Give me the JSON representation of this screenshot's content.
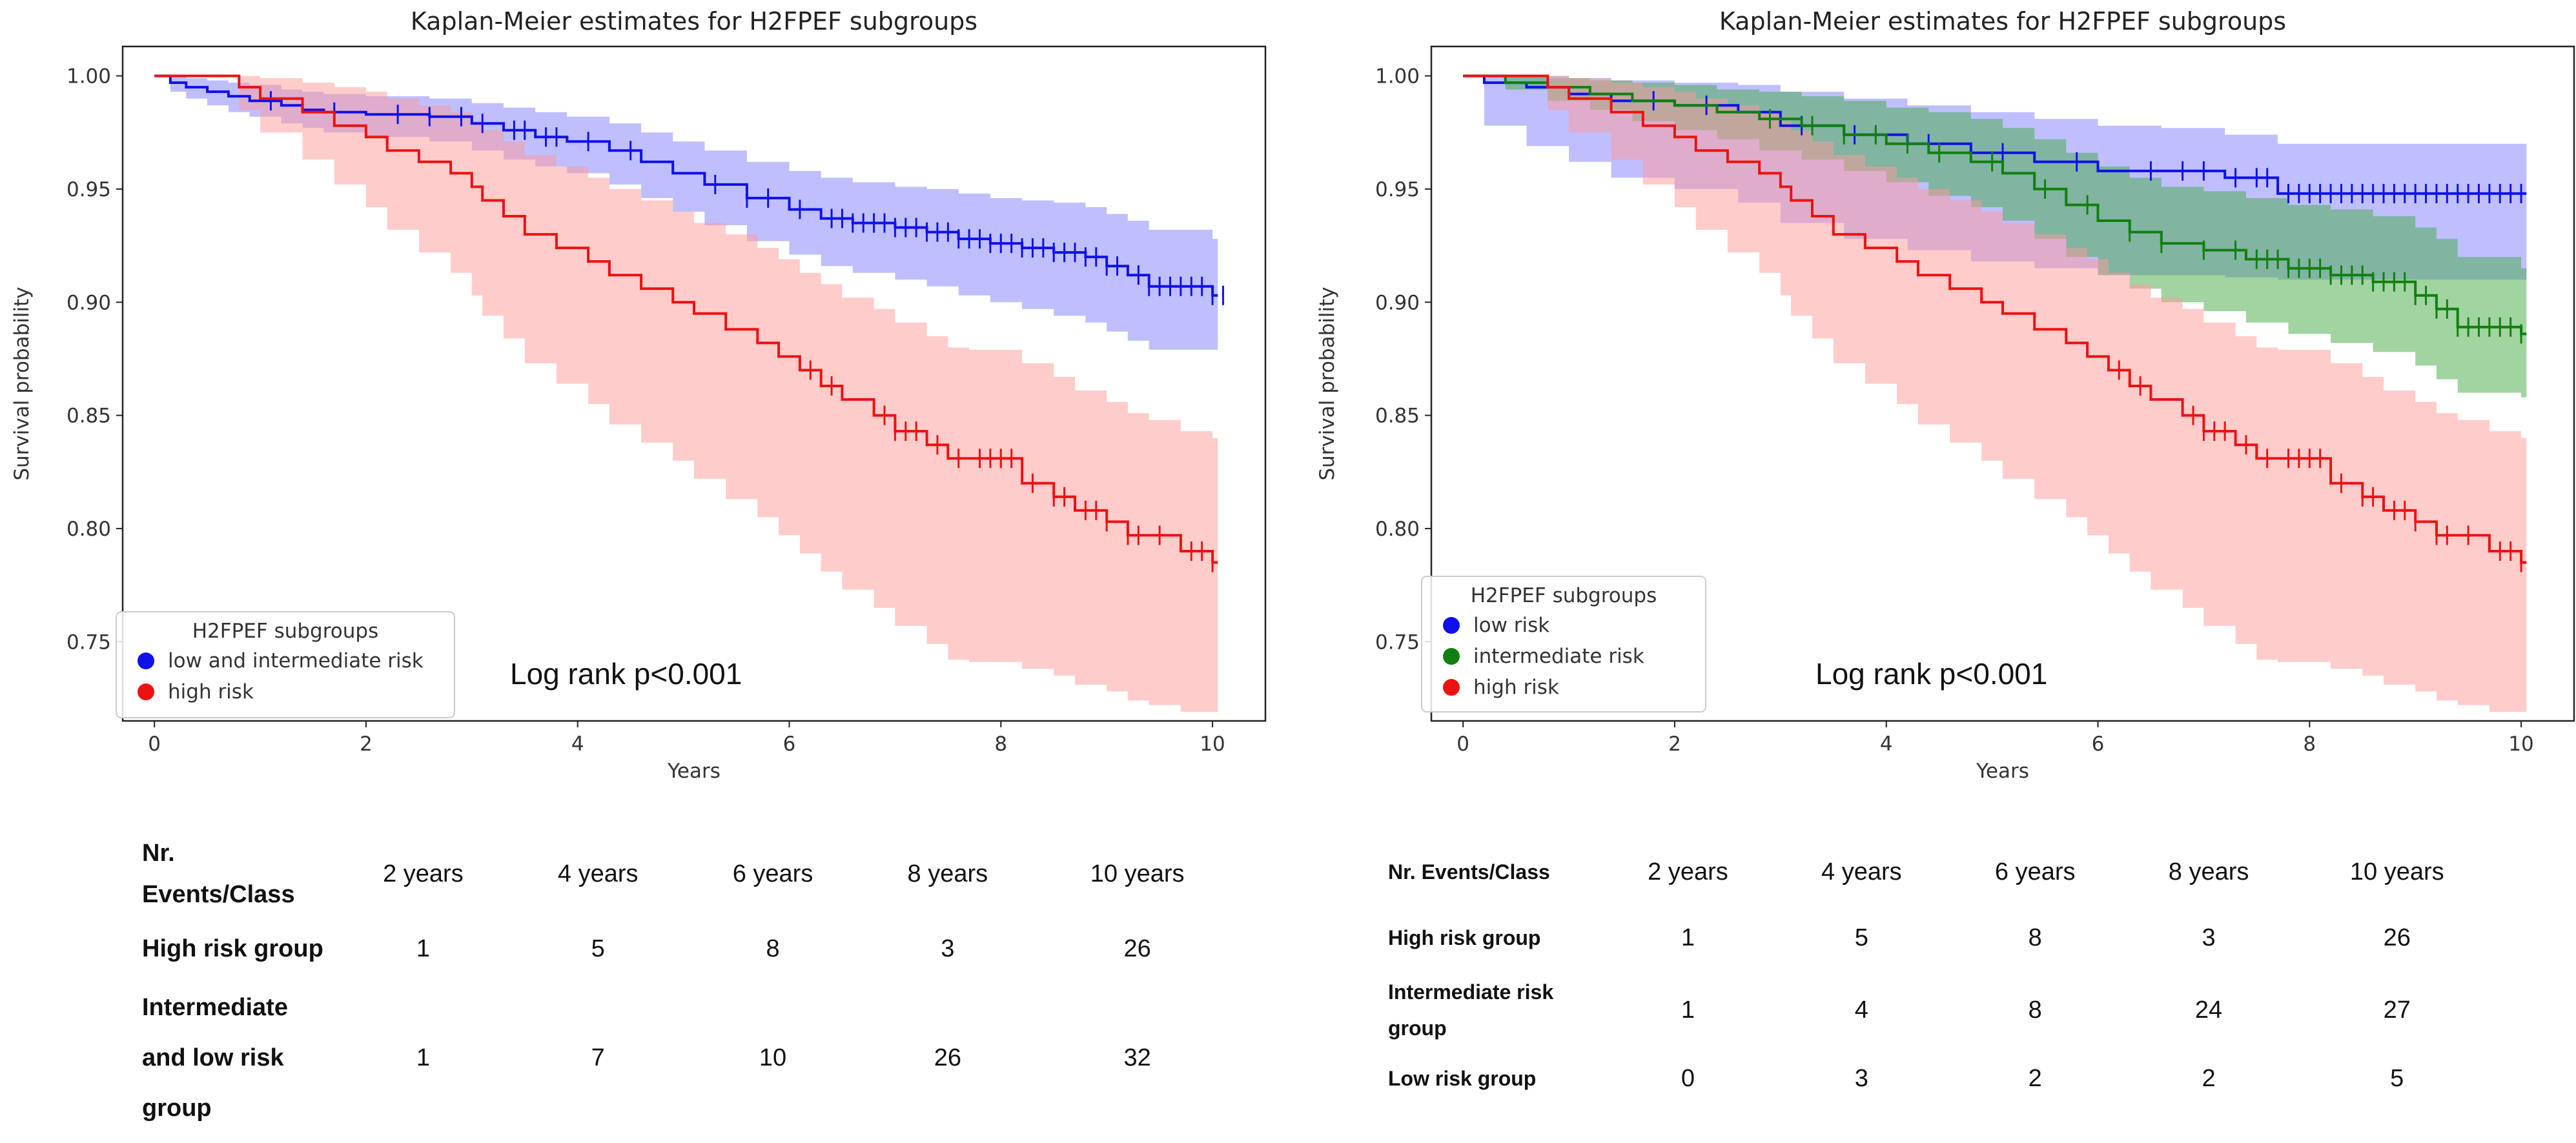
{
  "chart_data": [
    {
      "type": "line",
      "subtype": "kaplan-meier",
      "title": "Kaplan-Meier estimates for H2FPEF subgroups",
      "xlabel": "Years",
      "ylabel": "Survival probability",
      "xlim": [
        -0.3,
        10.5
      ],
      "ylim": [
        0.715,
        1.013
      ],
      "xticks": [
        0,
        2,
        4,
        6,
        8,
        10
      ],
      "yticks": [
        0.75,
        0.8,
        0.85,
        0.9,
        0.95,
        1.0
      ],
      "ytick_labels": [
        "0.75",
        "0.80",
        "0.85",
        "0.90",
        "0.95",
        "1.00"
      ],
      "legend": {
        "title": "H2FPEF subgroups",
        "position": "lower-left",
        "entries": [
          {
            "label": "low and intermediate risk",
            "color": "#1010ee"
          },
          {
            "label": "high risk",
            "color": "#ee1111"
          }
        ]
      },
      "annotation": "Log rank p<0.001",
      "series": [
        {
          "name": "low and intermediate risk",
          "color": "#1010ee",
          "band_color": "#8080ff",
          "x": [
            0,
            0.15,
            0.3,
            0.5,
            0.7,
            0.9,
            1.2,
            1.4,
            1.6,
            2.0,
            2.6,
            3.0,
            3.3,
            3.6,
            3.9,
            4.3,
            4.6,
            4.9,
            5.2,
            5.6,
            6.0,
            6.3,
            6.6,
            7.0,
            7.3,
            7.6,
            7.9,
            8.2,
            8.5,
            8.8,
            9.0,
            9.2,
            9.4,
            10.0
          ],
          "y": [
            1.0,
            0.997,
            0.995,
            0.993,
            0.991,
            0.989,
            0.987,
            0.985,
            0.984,
            0.983,
            0.982,
            0.979,
            0.976,
            0.973,
            0.971,
            0.967,
            0.962,
            0.957,
            0.952,
            0.946,
            0.941,
            0.937,
            0.935,
            0.933,
            0.931,
            0.928,
            0.926,
            0.924,
            0.922,
            0.92,
            0.916,
            0.912,
            0.907,
            0.903
          ],
          "lower": [
            1.0,
            0.993,
            0.99,
            0.987,
            0.984,
            0.982,
            0.979,
            0.977,
            0.975,
            0.973,
            0.971,
            0.967,
            0.963,
            0.96,
            0.957,
            0.952,
            0.946,
            0.94,
            0.934,
            0.927,
            0.921,
            0.916,
            0.913,
            0.91,
            0.907,
            0.903,
            0.9,
            0.897,
            0.894,
            0.891,
            0.887,
            0.883,
            0.879,
            0.879
          ],
          "upper": [
            1.0,
            1.0,
            0.999,
            0.998,
            0.997,
            0.996,
            0.994,
            0.993,
            0.992,
            0.991,
            0.99,
            0.988,
            0.986,
            0.984,
            0.982,
            0.979,
            0.975,
            0.971,
            0.967,
            0.962,
            0.958,
            0.955,
            0.953,
            0.951,
            0.95,
            0.948,
            0.946,
            0.945,
            0.944,
            0.942,
            0.939,
            0.936,
            0.932,
            0.928
          ],
          "censored": [
            1.1,
            1.7,
            2.3,
            2.6,
            2.9,
            3.1,
            3.4,
            3.5,
            3.7,
            3.8,
            4.1,
            4.5,
            5.3,
            5.6,
            5.8,
            6.1,
            6.4,
            6.5,
            6.6,
            6.7,
            6.8,
            6.9,
            7.0,
            7.1,
            7.2,
            7.3,
            7.4,
            7.5,
            7.6,
            7.7,
            7.8,
            7.9,
            8.0,
            8.1,
            8.2,
            8.3,
            8.4,
            8.5,
            8.6,
            8.7,
            8.8,
            8.9,
            9.0,
            9.1,
            9.3,
            9.4,
            9.5,
            9.6,
            9.7,
            9.8,
            9.9,
            10.0,
            10.1
          ]
        },
        {
          "name": "high risk",
          "color": "#ee1111",
          "band_color": "#ff9a9a",
          "x": [
            0,
            0.8,
            1.0,
            1.4,
            1.7,
            2.0,
            2.2,
            2.5,
            2.8,
            3.0,
            3.1,
            3.3,
            3.5,
            3.8,
            4.1,
            4.3,
            4.6,
            4.9,
            5.1,
            5.4,
            5.7,
            5.9,
            6.1,
            6.3,
            6.5,
            6.8,
            7.0,
            7.3,
            7.5,
            7.7,
            8.2,
            8.5,
            8.7,
            9.0,
            9.2,
            9.4,
            9.7,
            10.0
          ],
          "y": [
            1.0,
            0.995,
            0.99,
            0.984,
            0.978,
            0.973,
            0.967,
            0.962,
            0.957,
            0.951,
            0.945,
            0.938,
            0.93,
            0.924,
            0.918,
            0.912,
            0.906,
            0.9,
            0.895,
            0.888,
            0.882,
            0.876,
            0.87,
            0.863,
            0.857,
            0.85,
            0.843,
            0.837,
            0.831,
            0.831,
            0.82,
            0.814,
            0.808,
            0.803,
            0.797,
            0.797,
            0.79,
            0.785
          ],
          "lower": [
            1.0,
            0.985,
            0.975,
            0.963,
            0.952,
            0.942,
            0.932,
            0.922,
            0.913,
            0.903,
            0.894,
            0.884,
            0.873,
            0.864,
            0.855,
            0.846,
            0.838,
            0.83,
            0.822,
            0.813,
            0.805,
            0.797,
            0.789,
            0.781,
            0.773,
            0.765,
            0.757,
            0.749,
            0.742,
            0.741,
            0.738,
            0.735,
            0.731,
            0.728,
            0.724,
            0.722,
            0.719,
            0.719
          ],
          "upper": [
            1.0,
            1.0,
            0.999,
            0.997,
            0.995,
            0.993,
            0.99,
            0.987,
            0.984,
            0.98,
            0.976,
            0.971,
            0.965,
            0.96,
            0.955,
            0.95,
            0.945,
            0.94,
            0.935,
            0.93,
            0.924,
            0.919,
            0.913,
            0.908,
            0.902,
            0.897,
            0.891,
            0.885,
            0.88,
            0.879,
            0.873,
            0.867,
            0.861,
            0.856,
            0.851,
            0.848,
            0.843,
            0.84
          ],
          "censored": [
            6.2,
            6.4,
            6.9,
            7.0,
            7.1,
            7.2,
            7.4,
            7.6,
            7.8,
            7.9,
            8.0,
            8.1,
            8.3,
            8.5,
            8.6,
            8.8,
            8.9,
            9.0,
            9.2,
            9.3,
            9.5,
            9.8,
            9.9,
            10.0
          ]
        }
      ]
    },
    {
      "type": "line",
      "subtype": "kaplan-meier",
      "title": "Kaplan-Meier estimates for H2FPEF subgroups",
      "xlabel": "Years",
      "ylabel": "Survival probability",
      "xlim": [
        -0.3,
        10.5
      ],
      "ylim": [
        0.715,
        1.013
      ],
      "xticks": [
        0,
        2,
        4,
        6,
        8,
        10
      ],
      "yticks": [
        0.75,
        0.8,
        0.85,
        0.9,
        0.95,
        1.0
      ],
      "ytick_labels": [
        "0.75",
        "0.80",
        "0.85",
        "0.90",
        "0.95",
        "1.00"
      ],
      "legend": {
        "title": "H2FPEF subgroups",
        "position": "lower-left",
        "entries": [
          {
            "label": "low risk",
            "color": "#1010ee"
          },
          {
            "label": "intermediate risk",
            "color": "#108010"
          },
          {
            "label": "high risk",
            "color": "#ee1111"
          }
        ]
      },
      "annotation": "Log rank p<0.001",
      "series": [
        {
          "name": "low risk",
          "color": "#1010ee",
          "band_color": "#8080ff",
          "x": [
            0,
            0.2,
            0.6,
            1.0,
            1.4,
            2.0,
            2.6,
            3.0,
            3.6,
            4.2,
            4.8,
            5.4,
            6.0,
            6.6,
            7.2,
            7.7,
            10.0
          ],
          "y": [
            1.0,
            0.997,
            0.995,
            0.992,
            0.989,
            0.987,
            0.984,
            0.978,
            0.974,
            0.97,
            0.966,
            0.962,
            0.958,
            0.958,
            0.955,
            0.948,
            0.948
          ],
          "lower": [
            1.0,
            0.978,
            0.969,
            0.962,
            0.955,
            0.95,
            0.944,
            0.935,
            0.928,
            0.923,
            0.918,
            0.915,
            0.912,
            0.912,
            0.911,
            0.91,
            0.91
          ],
          "upper": [
            1.0,
            1.0,
            1.0,
            0.999,
            0.998,
            0.997,
            0.996,
            0.993,
            0.99,
            0.987,
            0.984,
            0.981,
            0.978,
            0.977,
            0.974,
            0.97,
            0.97
          ],
          "censored": [
            1.8,
            2.3,
            3.2,
            3.7,
            4.4,
            5.1,
            5.8,
            6.5,
            6.8,
            7.0,
            7.3,
            7.5,
            7.6,
            7.8,
            7.9,
            8.0,
            8.1,
            8.2,
            8.3,
            8.4,
            8.5,
            8.6,
            8.7,
            8.8,
            8.9,
            9.0,
            9.1,
            9.2,
            9.3,
            9.4,
            9.5,
            9.6,
            9.7,
            9.8,
            9.9,
            10.0
          ]
        },
        {
          "name": "intermediate risk",
          "color": "#108010",
          "band_color": "#44aa44",
          "x": [
            0,
            0.4,
            0.8,
            1.2,
            1.6,
            2.0,
            2.4,
            2.8,
            3.2,
            3.6,
            4.0,
            4.4,
            4.8,
            5.1,
            5.4,
            5.7,
            6.0,
            6.3,
            6.6,
            7.0,
            7.4,
            7.8,
            8.2,
            8.6,
            9.0,
            9.2,
            9.4,
            10.0
          ],
          "y": [
            1.0,
            0.997,
            0.995,
            0.992,
            0.989,
            0.987,
            0.984,
            0.981,
            0.978,
            0.974,
            0.97,
            0.966,
            0.962,
            0.957,
            0.95,
            0.943,
            0.936,
            0.931,
            0.926,
            0.923,
            0.919,
            0.915,
            0.912,
            0.909,
            0.903,
            0.897,
            0.889,
            0.886
          ],
          "lower": [
            1.0,
            0.994,
            0.989,
            0.985,
            0.98,
            0.976,
            0.972,
            0.967,
            0.963,
            0.958,
            0.953,
            0.947,
            0.942,
            0.936,
            0.928,
            0.92,
            0.912,
            0.906,
            0.9,
            0.896,
            0.891,
            0.886,
            0.882,
            0.878,
            0.872,
            0.866,
            0.86,
            0.858
          ],
          "upper": [
            1.0,
            1.0,
            0.999,
            0.998,
            0.997,
            0.996,
            0.994,
            0.993,
            0.991,
            0.989,
            0.986,
            0.984,
            0.981,
            0.977,
            0.972,
            0.966,
            0.96,
            0.955,
            0.951,
            0.949,
            0.946,
            0.943,
            0.941,
            0.938,
            0.933,
            0.928,
            0.92,
            0.915
          ],
          "censored": [
            2.9,
            3.3,
            3.6,
            3.9,
            4.2,
            4.5,
            5.0,
            5.5,
            5.9,
            6.3,
            6.6,
            7.0,
            7.3,
            7.5,
            7.6,
            7.7,
            7.8,
            7.9,
            8.0,
            8.1,
            8.2,
            8.3,
            8.4,
            8.5,
            8.6,
            8.7,
            8.8,
            8.9,
            9.0,
            9.1,
            9.2,
            9.3,
            9.4,
            9.5,
            9.6,
            9.7,
            9.8,
            9.9,
            10.0
          ]
        },
        {
          "name": "high risk",
          "color": "#ee1111",
          "band_color": "#ff9a9a",
          "x": [
            0,
            0.8,
            1.0,
            1.4,
            1.7,
            2.0,
            2.2,
            2.5,
            2.8,
            3.0,
            3.1,
            3.3,
            3.5,
            3.8,
            4.1,
            4.3,
            4.6,
            4.9,
            5.1,
            5.4,
            5.7,
            5.9,
            6.1,
            6.3,
            6.5,
            6.8,
            7.0,
            7.3,
            7.5,
            7.7,
            8.2,
            8.5,
            8.7,
            9.0,
            9.2,
            9.4,
            9.7,
            10.0
          ],
          "y": [
            1.0,
            0.995,
            0.99,
            0.984,
            0.978,
            0.973,
            0.967,
            0.962,
            0.957,
            0.951,
            0.945,
            0.938,
            0.93,
            0.924,
            0.918,
            0.912,
            0.906,
            0.9,
            0.895,
            0.888,
            0.882,
            0.876,
            0.87,
            0.863,
            0.857,
            0.85,
            0.843,
            0.837,
            0.831,
            0.831,
            0.82,
            0.814,
            0.808,
            0.803,
            0.797,
            0.797,
            0.79,
            0.785
          ],
          "lower": [
            1.0,
            0.985,
            0.975,
            0.963,
            0.952,
            0.942,
            0.932,
            0.922,
            0.913,
            0.903,
            0.894,
            0.884,
            0.873,
            0.864,
            0.855,
            0.846,
            0.838,
            0.83,
            0.822,
            0.813,
            0.805,
            0.797,
            0.789,
            0.781,
            0.773,
            0.765,
            0.757,
            0.749,
            0.742,
            0.741,
            0.738,
            0.735,
            0.731,
            0.728,
            0.724,
            0.722,
            0.719,
            0.719
          ],
          "upper": [
            1.0,
            1.0,
            0.999,
            0.997,
            0.995,
            0.993,
            0.99,
            0.987,
            0.984,
            0.98,
            0.976,
            0.971,
            0.965,
            0.96,
            0.955,
            0.95,
            0.945,
            0.94,
            0.935,
            0.93,
            0.924,
            0.919,
            0.913,
            0.908,
            0.902,
            0.897,
            0.891,
            0.885,
            0.88,
            0.879,
            0.873,
            0.867,
            0.861,
            0.856,
            0.851,
            0.848,
            0.843,
            0.84
          ],
          "censored": [
            6.2,
            6.4,
            6.9,
            7.0,
            7.1,
            7.2,
            7.4,
            7.6,
            7.8,
            7.9,
            8.0,
            8.1,
            8.3,
            8.5,
            8.6,
            8.8,
            8.9,
            9.0,
            9.2,
            9.3,
            9.5,
            9.8,
            9.9,
            10.0
          ]
        }
      ]
    }
  ],
  "tables": {
    "left": {
      "header_line1": "Nr.",
      "header_line2": "Events/Class",
      "columns": [
        "2 years",
        "4 years",
        "6 years",
        "8 years",
        "10 years"
      ],
      "rows": [
        {
          "label_lines": [
            "High risk group"
          ],
          "values": [
            "1",
            "5",
            "8",
            "3",
            "26"
          ]
        },
        {
          "label_lines": [
            "Intermediate",
            "and low  risk",
            "group"
          ],
          "values": [
            "1",
            "7",
            "10",
            "26",
            "32"
          ]
        }
      ]
    },
    "right": {
      "header": "Nr. Events/Class",
      "columns": [
        "2 years",
        "4 years",
        "6 years",
        "8 years",
        "10 years"
      ],
      "rows": [
        {
          "label_lines": [
            "High risk group"
          ],
          "values": [
            "1",
            "5",
            "8",
            "3",
            "26"
          ]
        },
        {
          "label_lines": [
            "Intermediate risk",
            "group"
          ],
          "values": [
            "1",
            "4",
            "8",
            "24",
            "27"
          ]
        },
        {
          "label_lines": [
            "Low risk group"
          ],
          "values": [
            "0",
            "3",
            "2",
            "2",
            "5"
          ]
        }
      ]
    }
  }
}
